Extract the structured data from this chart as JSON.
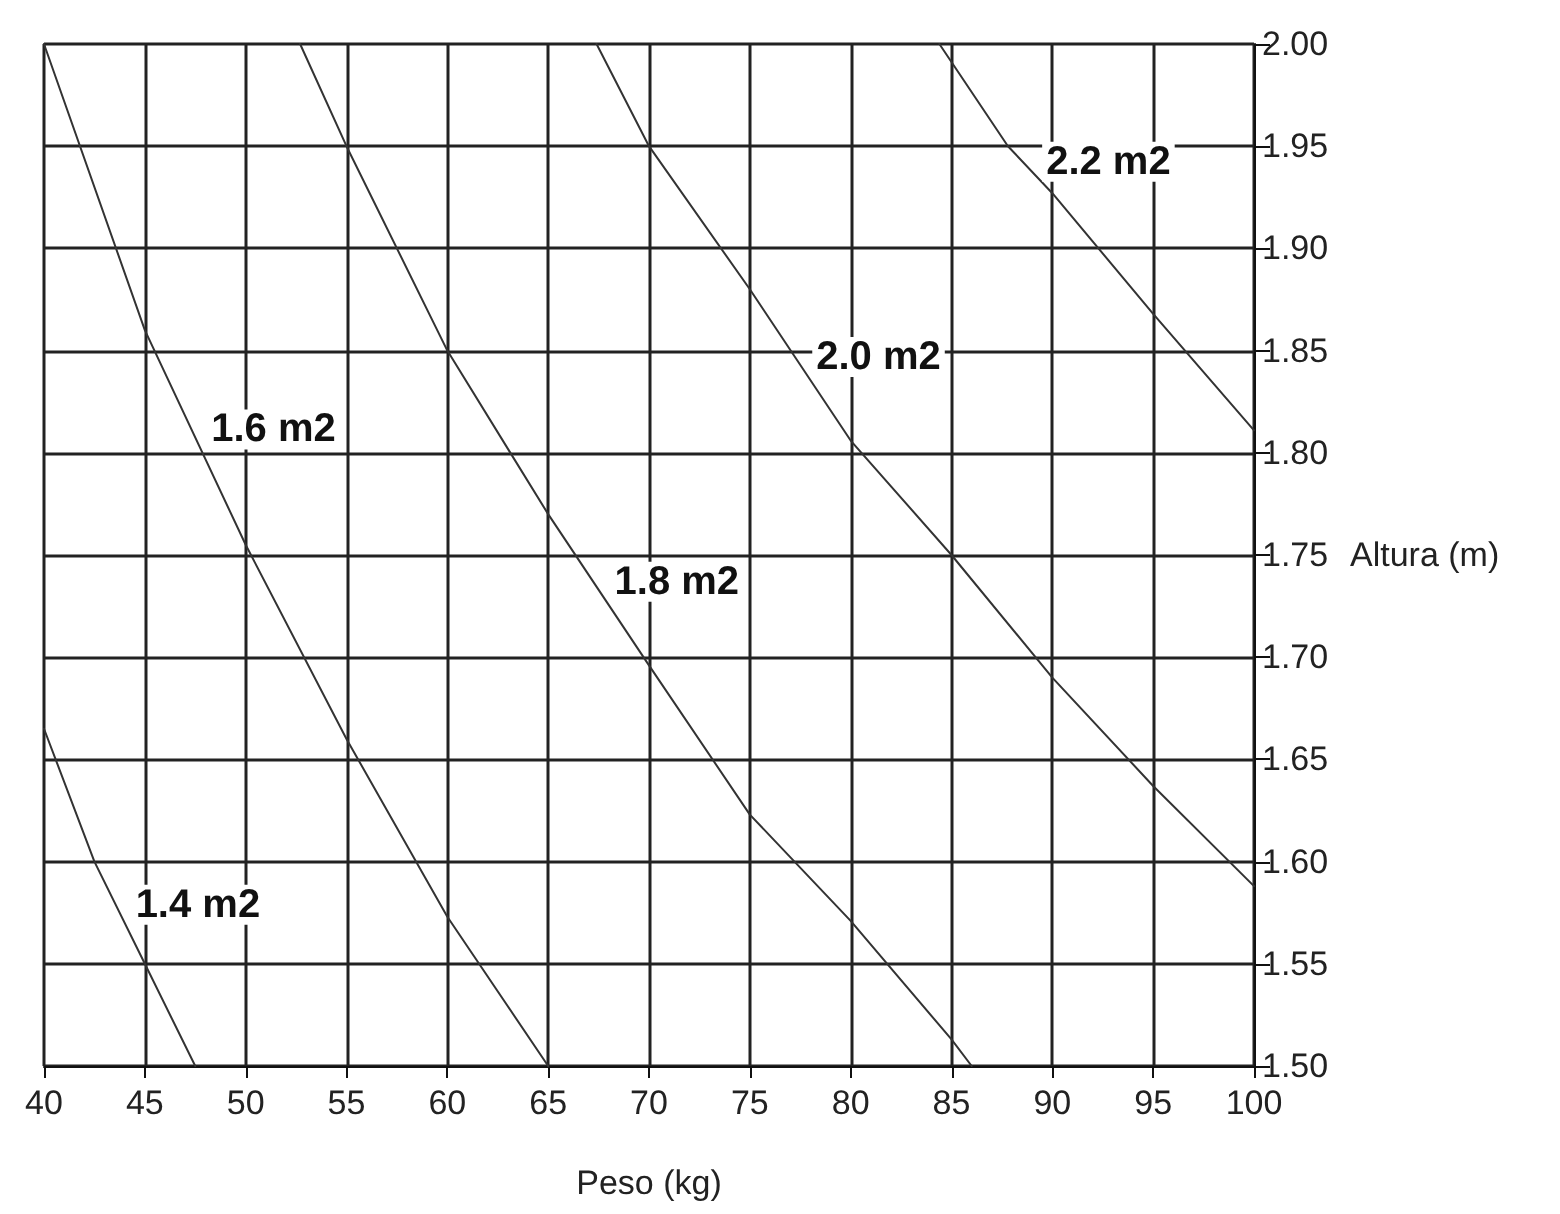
{
  "chart_data": {
    "type": "line",
    "xlabel": "Peso (kg)",
    "ylabel": "Altura (m)",
    "series": [
      {
        "name": "1.4 m2",
        "color": "#333333",
        "x": [
          40,
          42.5,
          45,
          47.5
        ],
        "values": [
          1.665,
          1.6,
          1.55,
          1.5
        ]
      },
      {
        "name": "1.6 m2",
        "color": "#333333",
        "x": [
          40,
          45,
          50,
          55,
          60,
          65
        ],
        "values": [
          2.0,
          1.86,
          1.755,
          1.66,
          1.573,
          1.5
        ]
      },
      {
        "name": "1.8 m2",
        "color": "#333333",
        "x": [
          52.7,
          55,
          60,
          65,
          70,
          75,
          80,
          85,
          86
        ],
        "values": [
          2.0,
          1.95,
          1.85,
          1.77,
          1.696,
          1.623,
          1.571,
          1.513,
          1.5
        ]
      },
      {
        "name": "2.0 m2",
        "color": "#333333",
        "x": [
          67.4,
          70,
          75,
          80,
          85,
          90,
          95,
          100
        ],
        "values": [
          2.0,
          1.95,
          1.88,
          1.806,
          1.75,
          1.69,
          1.637,
          1.588
        ]
      },
      {
        "name": "2.2 m2",
        "color": "#333333",
        "x": [
          84.4,
          87.8,
          90,
          95,
          100
        ],
        "values": [
          2.0,
          1.95,
          1.927,
          1.868,
          1.811
        ]
      }
    ],
    "xlim": [
      40,
      100
    ],
    "xticks": [
      40,
      45,
      50,
      55,
      60,
      65,
      70,
      75,
      80,
      85,
      90,
      95,
      100
    ],
    "ylim": [
      1.5,
      2.0
    ],
    "yticks": [
      {
        "value": 1.5,
        "label": "1.50"
      },
      {
        "value": 1.55,
        "label": "1.55"
      },
      {
        "value": 1.6,
        "label": "1.60"
      },
      {
        "value": 1.65,
        "label": "1.65"
      },
      {
        "value": 1.7,
        "label": "1.70"
      },
      {
        "value": 1.75,
        "label": "1.75"
      },
      {
        "value": 1.8,
        "label": "1.80"
      },
      {
        "value": 1.85,
        "label": "1.85"
      },
      {
        "value": 1.9,
        "label": "1.90"
      },
      {
        "value": 1.95,
        "label": "1.95"
      },
      {
        "value": 2.0,
        "label": "2.00"
      }
    ],
    "grid": true,
    "marker": "none",
    "line_style": "solid"
  }
}
